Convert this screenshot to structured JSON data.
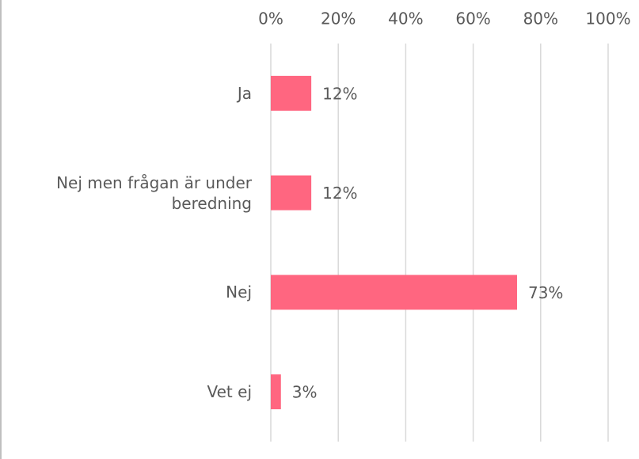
{
  "chart_data": {
    "type": "bar",
    "orientation": "horizontal",
    "categories": [
      "Ja",
      "Nej men frågan är under beredning",
      "Nej",
      "Vet ej"
    ],
    "values": [
      12,
      12,
      73,
      3
    ],
    "value_labels": [
      "12%",
      "12%",
      "73%",
      "3%"
    ],
    "color": "#ff6680",
    "xlim": [
      0,
      100
    ],
    "xticks": [
      {
        "value": 0,
        "label": "0%"
      },
      {
        "value": 20,
        "label": "20%"
      },
      {
        "value": 40,
        "label": "40%"
      },
      {
        "value": 60,
        "label": "60%"
      },
      {
        "value": 80,
        "label": "80%"
      },
      {
        "value": 100,
        "label": "100%"
      }
    ],
    "grid": true
  }
}
